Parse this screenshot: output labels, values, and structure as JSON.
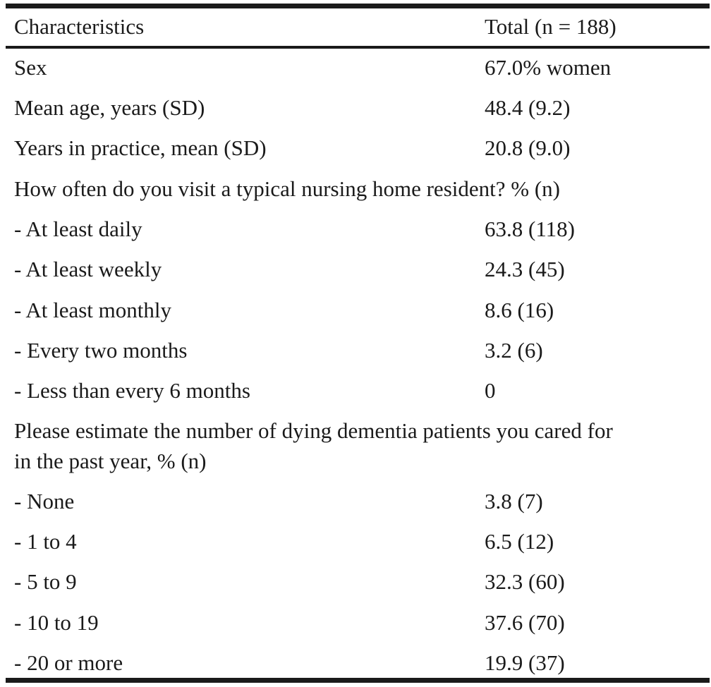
{
  "table": {
    "header": {
      "characteristics": "Characteristics",
      "total": "Total (n = 188)"
    },
    "rows": [
      {
        "label": "Sex",
        "value": "67.0% women"
      },
      {
        "label": "Mean age, years (SD)",
        "value": "48.4 (9.2)"
      },
      {
        "label": "Years in practice, mean (SD)",
        "value": "20.8 (9.0)"
      },
      {
        "label": "How often do you visit a typical nursing home resident? % (n)",
        "value": ""
      },
      {
        "label": "- At least daily",
        "value": "63.8 (118)"
      },
      {
        "label": "- At least weekly",
        "value": "24.3 (45)"
      },
      {
        "label": "- At least monthly",
        "value": "8.6 (16)"
      },
      {
        "label": "- Every two months",
        "value": "3.2 (6)"
      },
      {
        "label": "- Less than every 6 months",
        "value": "0"
      },
      {
        "label": "Please estimate the number of dying dementia patients you cared for",
        "value": ""
      },
      {
        "label": "in the past year, % (n)",
        "value": ""
      },
      {
        "label": "- None",
        "value": "3.8 (7)"
      },
      {
        "label": "- 1 to 4",
        "value": "6.5 (12)"
      },
      {
        "label": "- 5 to 9",
        "value": "32.3 (60)"
      },
      {
        "label": "- 10 to 19",
        "value": "37.6 (70)"
      },
      {
        "label": "- 20 or more",
        "value": "19.9 (37)"
      }
    ]
  }
}
